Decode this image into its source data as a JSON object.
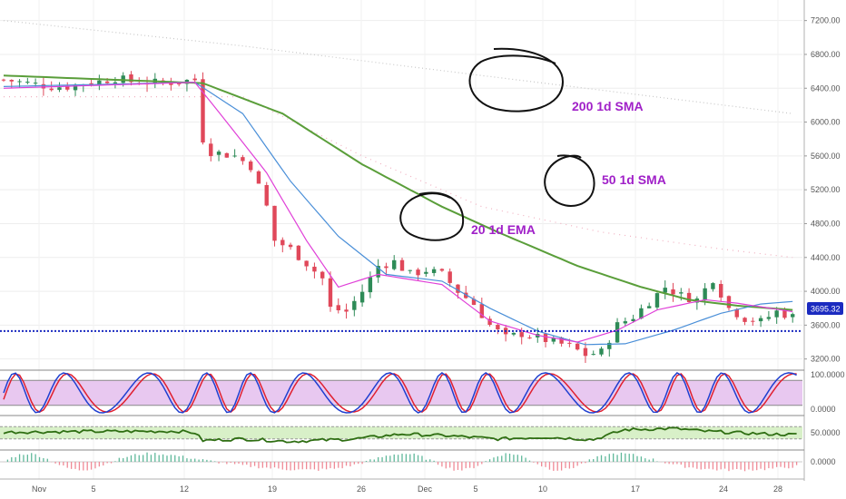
{
  "chart_data": {
    "type": "candlestick",
    "price_axis": {
      "ticks": [
        "7200.00",
        "6800.00",
        "6400.00",
        "6000.00",
        "5600.00",
        "5200.00",
        "4800.00",
        "4400.00",
        "4000.00",
        "3600.00",
        "3200.00"
      ],
      "range": [
        3100,
        7400
      ]
    },
    "x_axis": {
      "ticks": [
        "Nov",
        "5",
        "12",
        "19",
        "26",
        "Dec",
        "5",
        "10",
        "17",
        "24",
        "28"
      ]
    },
    "current_price": "3695.32",
    "support_level": 3530,
    "annotations": [
      "20 1d EMA",
      "50 1d SMA",
      "200 1d SMA"
    ],
    "price_keypoints": [
      [
        0,
        6500
      ],
      [
        6,
        6420
      ],
      [
        8,
        6420
      ],
      [
        10,
        6460
      ],
      [
        12,
        6480
      ],
      [
        14,
        6520
      ],
      [
        16,
        6480
      ],
      [
        20,
        6460
      ],
      [
        24,
        6500
      ],
      [
        25,
        5800
      ],
      [
        26,
        5650
      ],
      [
        29,
        5600
      ],
      [
        31,
        5480
      ],
      [
        33,
        5000
      ],
      [
        34,
        4600
      ],
      [
        36,
        4500
      ],
      [
        38,
        4330
      ],
      [
        40,
        4150
      ],
      [
        41,
        3800
      ],
      [
        43,
        3760
      ],
      [
        45,
        4000
      ],
      [
        47,
        4300
      ],
      [
        49,
        4350
      ],
      [
        51,
        4200
      ],
      [
        53,
        4250
      ],
      [
        55,
        4200
      ],
      [
        57,
        4000
      ],
      [
        59,
        3850
      ],
      [
        61,
        3600
      ],
      [
        63,
        3450
      ],
      [
        65,
        3500
      ],
      [
        67,
        3450
      ],
      [
        69,
        3400
      ],
      [
        71,
        3350
      ],
      [
        73,
        3250
      ],
      [
        75,
        3280
      ],
      [
        77,
        3600
      ],
      [
        79,
        3700
      ],
      [
        81,
        3880
      ],
      [
        83,
        4050
      ],
      [
        85,
        3950
      ],
      [
        87,
        3900
      ],
      [
        89,
        4150
      ],
      [
        91,
        3800
      ],
      [
        93,
        3680
      ],
      [
        95,
        3640
      ],
      [
        97,
        3760
      ],
      [
        99,
        3700
      ]
    ],
    "ema20_keypoints": [
      [
        0,
        6400
      ],
      [
        24,
        6470
      ],
      [
        28,
        6000
      ],
      [
        33,
        5400
      ],
      [
        38,
        4600
      ],
      [
        42,
        4050
      ],
      [
        47,
        4200
      ],
      [
        55,
        4080
      ],
      [
        61,
        3650
      ],
      [
        67,
        3480
      ],
      [
        72,
        3400
      ],
      [
        77,
        3540
      ],
      [
        82,
        3780
      ],
      [
        88,
        3900
      ],
      [
        92,
        3860
      ],
      [
        99,
        3760
      ]
    ],
    "sma50_keypoints": [
      [
        0,
        6420
      ],
      [
        24,
        6470
      ],
      [
        30,
        6100
      ],
      [
        36,
        5300
      ],
      [
        42,
        4650
      ],
      [
        48,
        4200
      ],
      [
        55,
        4120
      ],
      [
        61,
        3800
      ],
      [
        67,
        3530
      ],
      [
        73,
        3370
      ],
      [
        78,
        3380
      ],
      [
        84,
        3540
      ],
      [
        90,
        3740
      ],
      [
        95,
        3850
      ],
      [
        99,
        3880
      ]
    ],
    "sma200_keypoints": [
      [
        0,
        6550
      ],
      [
        25,
        6460
      ],
      [
        35,
        6100
      ],
      [
        45,
        5500
      ],
      [
        55,
        5000
      ],
      [
        62,
        4700
      ],
      [
        72,
        4300
      ],
      [
        80,
        4050
      ],
      [
        86,
        3900
      ],
      [
        92,
        3830
      ],
      [
        99,
        3780
      ]
    ],
    "sma200_dotted_keypoints": [
      [
        0,
        7200
      ],
      [
        30,
        6900
      ],
      [
        60,
        6550
      ],
      [
        99,
        6100
      ]
    ],
    "sma50_dotted_keypoints": [
      [
        30,
        6300
      ],
      [
        45,
        5600
      ],
      [
        60,
        5000
      ],
      [
        75,
        4700
      ],
      [
        90,
        4500
      ],
      [
        99,
        4400
      ]
    ],
    "stoch_rsi": {
      "ticks": [
        "100.0000",
        "0.0000"
      ],
      "range": [
        0,
        100
      ],
      "band": [
        20,
        80
      ]
    },
    "rsi": {
      "ticks": [
        "50.0000"
      ],
      "range": [
        0,
        100
      ],
      "band": [
        30,
        70
      ],
      "keypoints": [
        [
          0,
          52
        ],
        [
          10,
          54
        ],
        [
          22,
          55
        ],
        [
          24,
          50
        ],
        [
          25,
          25
        ],
        [
          30,
          30
        ],
        [
          36,
          22
        ],
        [
          44,
          30
        ],
        [
          50,
          46
        ],
        [
          56,
          40
        ],
        [
          62,
          30
        ],
        [
          68,
          36
        ],
        [
          74,
          28
        ],
        [
          78,
          60
        ],
        [
          84,
          64
        ],
        [
          88,
          55
        ],
        [
          92,
          50
        ],
        [
          96,
          46
        ],
        [
          99,
          44
        ]
      ]
    },
    "macd_histogram": {
      "ticks": [
        "0.0000"
      ]
    },
    "colors": {
      "candle_up": "#2e8b57",
      "candle_down": "#e0485a",
      "ema20": "#e040d8",
      "sma50": "#4a8fd8",
      "sma200": "#5a9e3a",
      "support": "#1b2bc0",
      "stoch_k": "#1f3fd0",
      "stoch_d": "#e02030",
      "stoch_fill": "#e8c8f0",
      "rsi_line": "#2e6e12",
      "rsi_fill": "#d8f0c8",
      "price_badge": "#1b2bc0",
      "annotation": "#a020c8"
    }
  }
}
